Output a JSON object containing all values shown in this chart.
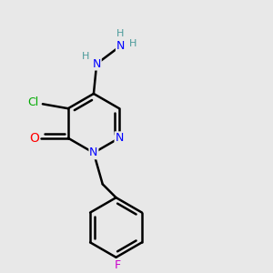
{
  "bg_color": "#e8e8e8",
  "bond_color": "#000000",
  "bond_width": 1.8,
  "atom_colors": {
    "N": "#0000ff",
    "O": "#ff0000",
    "Cl": "#00aa00",
    "F": "#cc00cc",
    "C": "#000000",
    "H": "#4a9a9a"
  },
  "font_size": 9
}
